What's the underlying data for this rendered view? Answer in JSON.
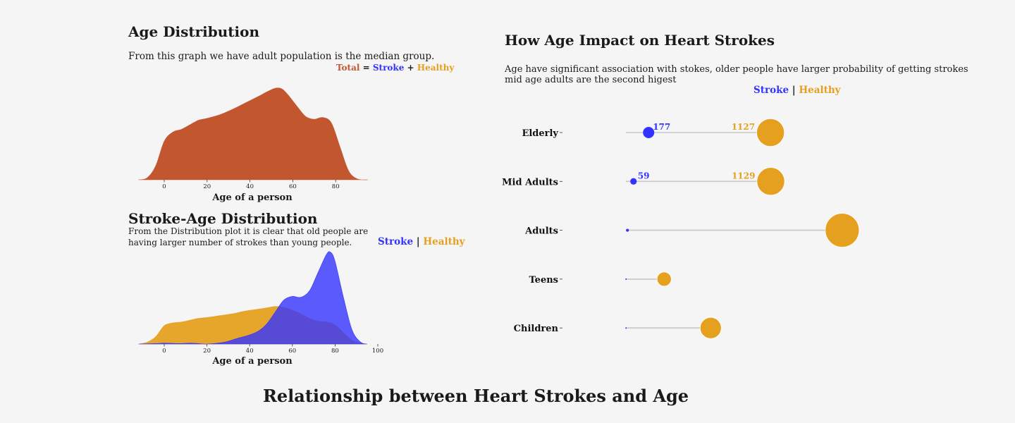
{
  "main_title": "Relationship between Heart Strokes and Age",
  "colors": {
    "total": "#c2572f",
    "stroke": "#3333ff",
    "healthy": "#e5a020",
    "bg": "#f5f5f5"
  },
  "panel1": {
    "title": "Age Distribution",
    "subtitle": "From this graph we have adult population is the median group.",
    "legend": {
      "total": "Total",
      "eq": "=",
      "stroke": "Stroke",
      "plus": "+",
      "healthy": "Healthy"
    }
  },
  "panel2": {
    "title": "Stroke-Age Distribution",
    "subtitle_line1": "From the Distribution plot it is clear that old people are",
    "subtitle_line2": "having larger number of strokes than young people.",
    "legend": {
      "stroke": "Stroke",
      "sep": "|",
      "healthy": "Healthy"
    }
  },
  "panel3": {
    "title": "How Age Impact on Heart Strokes",
    "subtitle_line1": "Age have significant association with stokes, older people have larger probability of getting strokes",
    "subtitle_line2": "mid age adults are the second higest",
    "legend": {
      "stroke": "Stroke",
      "sep": "|",
      "healthy": "Healthy"
    }
  },
  "chart_data": [
    {
      "type": "area",
      "title": "Age Distribution",
      "xlabel": "Age of a person",
      "ylabel": "",
      "xlim": [
        -12,
        95
      ],
      "xticks": [
        0,
        20,
        40,
        60,
        80
      ],
      "series": [
        {
          "name": "Total",
          "x": [
            -12,
            -8,
            -4,
            0,
            4,
            8,
            12,
            16,
            20,
            26,
            32,
            38,
            44,
            48,
            52,
            55,
            58,
            62,
            66,
            70,
            74,
            78,
            82,
            86,
            90,
            95
          ],
          "y": [
            0,
            0.02,
            0.15,
            0.42,
            0.52,
            0.55,
            0.6,
            0.65,
            0.67,
            0.71,
            0.77,
            0.84,
            0.91,
            0.96,
            1.0,
            0.99,
            0.92,
            0.8,
            0.69,
            0.66,
            0.68,
            0.62,
            0.36,
            0.1,
            0.01,
            0
          ]
        }
      ]
    },
    {
      "type": "area",
      "title": "Stroke-Age Distribution",
      "xlabel": "Age of a person",
      "ylabel": "",
      "xlim": [
        -12,
        100
      ],
      "xticks": [
        0,
        20,
        40,
        60,
        80,
        100
      ],
      "series": [
        {
          "name": "Healthy",
          "x": [
            -12,
            -8,
            -4,
            0,
            4,
            8,
            12,
            16,
            20,
            26,
            32,
            38,
            44,
            48,
            52,
            56,
            60,
            64,
            68,
            72,
            76,
            80,
            84,
            88,
            92,
            95
          ],
          "y": [
            0,
            0.02,
            0.08,
            0.2,
            0.23,
            0.24,
            0.26,
            0.28,
            0.29,
            0.31,
            0.33,
            0.36,
            0.38,
            0.395,
            0.41,
            0.4,
            0.37,
            0.33,
            0.28,
            0.25,
            0.24,
            0.21,
            0.12,
            0.04,
            0.01,
            0
          ]
        },
        {
          "name": "Stroke",
          "x": [
            -12,
            -4,
            0,
            8,
            12,
            16,
            20,
            28,
            34,
            40,
            44,
            48,
            52,
            56,
            60,
            64,
            68,
            72,
            76,
            78,
            80,
            84,
            88,
            92,
            95
          ],
          "y": [
            0,
            0.005,
            0.01,
            0.005,
            0.01,
            0.005,
            0.0,
            0.02,
            0.06,
            0.1,
            0.14,
            0.22,
            0.35,
            0.48,
            0.52,
            0.51,
            0.58,
            0.78,
            0.98,
            1.0,
            0.9,
            0.5,
            0.15,
            0.02,
            0
          ]
        }
      ]
    },
    {
      "type": "scatter",
      "title": "How Age Impact on Heart Strokes",
      "categories": [
        "Elderly",
        "Mid Adults",
        "Adults",
        "Teens",
        "Children"
      ],
      "series": [
        {
          "name": "Stroke",
          "values": [
            177,
            59,
            12,
            1,
            1
          ]
        },
        {
          "name": "Healthy",
          "values": [
            1127,
            1129,
            1686,
            298,
            661
          ]
        }
      ],
      "value_labels": [
        {
          "category": "Elderly",
          "stroke": "177",
          "healthy": "1127"
        },
        {
          "category": "Mid Adults",
          "stroke": "59",
          "healthy": "1129"
        }
      ]
    }
  ]
}
